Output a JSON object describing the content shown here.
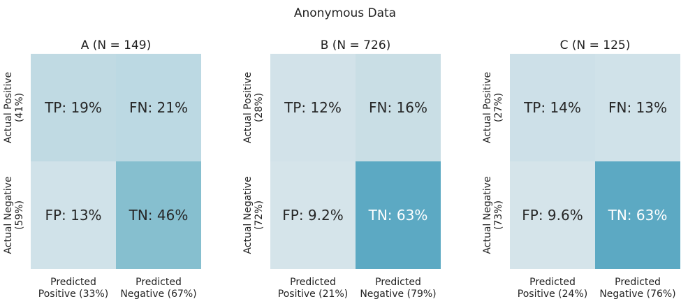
{
  "chart_data": {
    "type": "heatmap",
    "title": "Anonymous Data",
    "x_tick_labels": [
      [
        "Predicted",
        "Positive (33%)",
        "Predicted",
        "Negative (67%)"
      ],
      [
        "Predicted",
        "Positive (21%)",
        "Predicted",
        "Negative (79%)"
      ],
      [
        "Predicted",
        "Positive (24%)",
        "Predicted",
        "Negative (76%)"
      ]
    ],
    "panels": [
      {
        "title": "A (N = 149)",
        "row_labels": [
          [
            "Actual Positive",
            "(41%)"
          ],
          [
            "Actual Negative",
            "(59%)"
          ]
        ],
        "col_labels": [
          [
            "Predicted",
            "Positive (33%)"
          ],
          [
            "Predicted",
            "Negative (67%)"
          ]
        ],
        "cells": [
          {
            "label": "TP: 19%",
            "value": 19,
            "color": "#c0dae3",
            "text_color": "#262626"
          },
          {
            "label": "FN: 21%",
            "value": 21,
            "color": "#bcd9e3",
            "text_color": "#262626"
          },
          {
            "label": "FP: 13%",
            "value": 13,
            "color": "#d0e2e9",
            "text_color": "#262626"
          },
          {
            "label": "TN: 46%",
            "value": 46,
            "color": "#86bfcf",
            "text_color": "#262626"
          }
        ]
      },
      {
        "title": "B (N = 726)",
        "row_labels": [
          [
            "Actual Positive",
            "(28%)"
          ],
          [
            "Actual Negative",
            "(72%)"
          ]
        ],
        "col_labels": [
          [
            "Predicted",
            "Positive (21%)"
          ],
          [
            "Predicted",
            "Negative (79%)"
          ]
        ],
        "cells": [
          {
            "label": "TP: 12%",
            "value": 12,
            "color": "#d2e2e9",
            "text_color": "#262626"
          },
          {
            "label": "FN: 16%",
            "value": 16,
            "color": "#c9dee5",
            "text_color": "#262626"
          },
          {
            "label": "FP: 9.2%",
            "value": 9.2,
            "color": "#d5e4ea",
            "text_color": "#262626"
          },
          {
            "label": "TN: 63%",
            "value": 63,
            "color": "#5ca9c3",
            "text_color": "#ffffff"
          }
        ]
      },
      {
        "title": "C (N = 125)",
        "row_labels": [
          [
            "Actual Positive",
            "(27%)"
          ],
          [
            "Actual Negative",
            "(73%)"
          ]
        ],
        "col_labels": [
          [
            "Predicted",
            "Positive (24%)"
          ],
          [
            "Predicted",
            "Negative (76%)"
          ]
        ],
        "cells": [
          {
            "label": "TP: 14%",
            "value": 14,
            "color": "#cde0e8",
            "text_color": "#262626"
          },
          {
            "label": "FN: 13%",
            "value": 13,
            "color": "#d0e2e9",
            "text_color": "#262626"
          },
          {
            "label": "FP: 9.6%",
            "value": 9.6,
            "color": "#d5e4ea",
            "text_color": "#262626"
          },
          {
            "label": "TN: 63%",
            "value": 63,
            "color": "#5ca9c3",
            "text_color": "#ffffff"
          }
        ]
      }
    ]
  }
}
